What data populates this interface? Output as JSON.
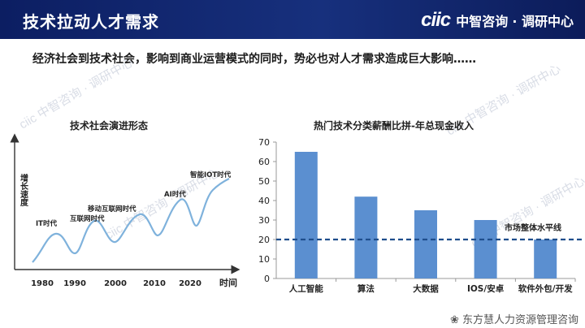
{
  "header": {
    "title": "技术拉动人才需求",
    "logo_mark": "ciic",
    "logo_cn": "中智咨询",
    "logo_sub": "· 调研中心"
  },
  "subtitle": "经济社会到技术社会，影响到商业运营模式的同时，势必也对人才需求造成巨大影响……",
  "watermark": {
    "text": "ciic 中智咨询 · 调研中心"
  },
  "left_chart": {
    "title": "技术社会演进形态",
    "y_label": "增长速度",
    "x_label": "时间",
    "years": [
      "1980",
      "1990",
      "2000",
      "2010",
      "2020"
    ],
    "eras": [
      "IT时代",
      "互联网时代",
      "移动互联网时代",
      "AI时代",
      "智能IOT时代"
    ]
  },
  "chart_data": {
    "type": "bar",
    "title": "热门技术分类薪酬比拼-年总现金收入",
    "categories": [
      "人工智能",
      "算法",
      "大数据",
      "IOS/安卓",
      "软件外包/开发"
    ],
    "values": [
      65,
      42,
      35,
      30,
      20
    ],
    "ylim": [
      0,
      70
    ],
    "yticks": [
      0,
      10,
      20,
      30,
      40,
      50,
      60,
      70
    ],
    "reference_line": {
      "label": "市场整体水平线",
      "value": 20
    },
    "bar_color": "#5b8fd0",
    "ref_color": "#1f4e8c",
    "grid": false
  },
  "footer": {
    "text": "东方慧人力资源管理咨询"
  }
}
